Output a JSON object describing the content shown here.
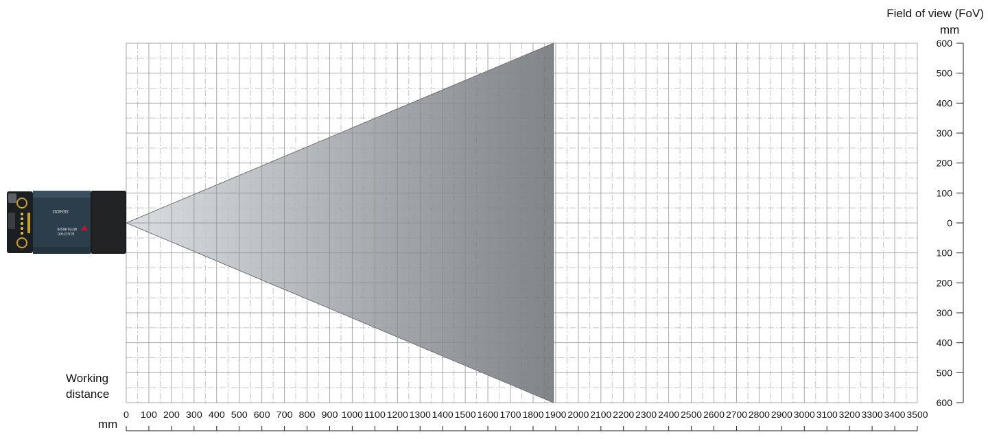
{
  "chart_data": {
    "type": "area",
    "title": "",
    "xlabel": "Working distance",
    "xunit": "mm",
    "ylabel": "Field of view (FoV)",
    "yunit": "mm",
    "xlim": [
      0,
      3500
    ],
    "ylim": [
      -600,
      600
    ],
    "x_ticks": [
      0,
      100,
      200,
      300,
      400,
      500,
      600,
      700,
      800,
      900,
      1000,
      1100,
      1200,
      1300,
      1400,
      1500,
      1600,
      1700,
      1800,
      1900,
      2000,
      2100,
      2200,
      2300,
      2400,
      2500,
      2600,
      2700,
      2800,
      2900,
      3000,
      3100,
      3200,
      3300,
      3400,
      3500
    ],
    "y_ticks": [
      600,
      500,
      400,
      300,
      200,
      100,
      0,
      100,
      200,
      300,
      400,
      500,
      600
    ],
    "grid": true,
    "field_of_view": {
      "apex": [
        0,
        0
      ],
      "max_distance": 1890,
      "upper": 600,
      "lower": -600
    },
    "colors": {
      "fov_light": "#d4d8dc",
      "fov_dark": "#6b6f74",
      "grid_major": "#8a8a8a",
      "grid_minor": "#c4c4c4"
    }
  },
  "labels": {
    "fov_title": "Field of view (FoV)",
    "fov_unit": "mm",
    "wd_line1": "Working",
    "wd_line2": "distance",
    "x_unit": "mm"
  },
  "camera": {
    "icon": "barcode-reader-camera-icon",
    "model": "XENIOO",
    "brand_line1": "MITSUBISHI",
    "brand_line2": "ELECTRIC"
  }
}
